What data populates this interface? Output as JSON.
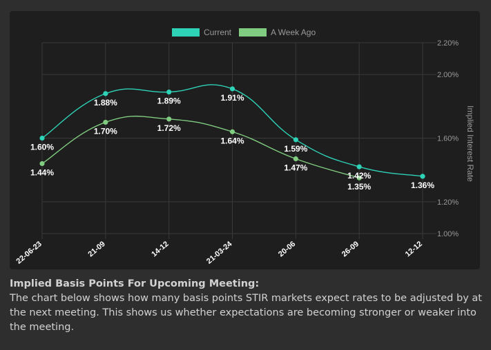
{
  "chart_data": {
    "type": "line",
    "categories": [
      "22-06-23",
      "21-09",
      "14-12",
      "21-03-24",
      "20-06",
      "26-09",
      "12-12"
    ],
    "series": [
      {
        "name": "Current",
        "values": [
          1.6,
          1.88,
          1.89,
          1.91,
          1.59,
          1.42,
          1.36
        ],
        "labels": [
          "1.60%",
          "1.88%",
          "1.89%",
          "1.91%",
          "1.59%",
          "1.42%",
          "1.36%"
        ]
      },
      {
        "name": "A Week Ago",
        "values": [
          1.44,
          1.7,
          1.72,
          1.64,
          1.47,
          1.35,
          null
        ],
        "labels": [
          "1.44%",
          "1.70%",
          "1.72%",
          "1.64%",
          "1.47%",
          "1.35%",
          null
        ]
      }
    ],
    "ylabel": "Implied Interest Rate",
    "ylim": [
      1.0,
      2.2
    ],
    "yticks": [
      "1.00%",
      "1.20%",
      "1.60%",
      "2.00%",
      "2.20%"
    ],
    "ytick_values": [
      1.0,
      1.2,
      1.6,
      2.0,
      2.2
    ],
    "legend_position": "top-center",
    "grid": true
  },
  "colors": {
    "current": "#2ed3b7",
    "week_ago": "#80cc80",
    "grid": "#3a3a3a",
    "tick_text": "#9a9a9a",
    "label_text": "#ffffff"
  },
  "description": {
    "title": "Implied Basis Points For Upcoming Meeting:",
    "body": "The chart below shows how many basis points STIR markets expect rates to be adjusted by at the next meeting. This shows us whether expectations are becoming stronger or weaker into the meeting."
  }
}
